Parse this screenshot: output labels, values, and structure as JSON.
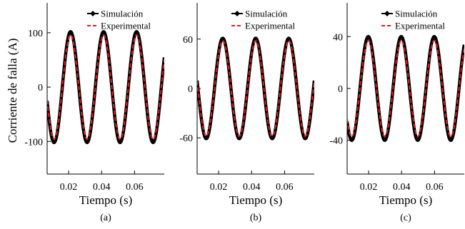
{
  "figure": {
    "ylabel": "Corriente de falla (A)",
    "colors": {
      "simulation": "#000000",
      "experimental": "#e31a1c"
    }
  },
  "chart_data": [
    {
      "type": "line",
      "subfig": "(a)",
      "xlabel": "Tiempo (s)",
      "ylabel": "Corriente de falla (A)",
      "xlim": [
        0.007,
        0.078
      ],
      "ylim": [
        -160,
        155
      ],
      "xticks": [
        0.02,
        0.04,
        0.06
      ],
      "xtick_labels": [
        "0.02",
        "0.04",
        "0.06"
      ],
      "yticks": [
        100,
        0,
        -100
      ],
      "ytick_labels": [
        "100",
        "0",
        "-100"
      ],
      "legend": "top-right",
      "frequency_hz": 50,
      "series": [
        {
          "name": "Simulación",
          "amplitude": 102,
          "peak_time": 0.0212,
          "style": "solid-marker"
        },
        {
          "name": "Experimental",
          "amplitude": 96,
          "peak_time": 0.0212,
          "style": "dashed"
        }
      ]
    },
    {
      "type": "line",
      "subfig": "(b)",
      "xlabel": "Tiempo (s)",
      "ylabel": "",
      "xlim": [
        0.007,
        0.078
      ],
      "ylim": [
        -104,
        104
      ],
      "xticks": [
        0.02,
        0.04,
        0.06
      ],
      "xtick_labels": [
        "0.02",
        "0.04",
        "0.06"
      ],
      "yticks": [
        60,
        0,
        -60
      ],
      "ytick_labels": [
        "60",
        "0",
        "-60"
      ],
      "legend": "top-right",
      "frequency_hz": 50,
      "series": [
        {
          "name": "Simulación",
          "amplitude": 61,
          "peak_time": 0.0225,
          "style": "solid-marker"
        },
        {
          "name": "Experimental",
          "amplitude": 58,
          "peak_time": 0.0225,
          "style": "dashed"
        }
      ]
    },
    {
      "type": "line",
      "subfig": "(c)",
      "xlabel": "Tiempo (s)",
      "ylabel": "",
      "xlim": [
        0.007,
        0.078
      ],
      "ylim": [
        -66,
        66
      ],
      "xticks": [
        0.02,
        0.04,
        0.06
      ],
      "xtick_labels": [
        "0.02",
        "0.04",
        "0.06"
      ],
      "yticks": [
        40,
        0,
        -40
      ],
      "ytick_labels": [
        "40",
        "0",
        "-40"
      ],
      "legend": "top-right",
      "frequency_hz": 50,
      "series": [
        {
          "name": "Simulación",
          "amplitude": 40,
          "peak_time": 0.0198,
          "style": "solid-marker"
        },
        {
          "name": "Experimental",
          "amplitude": 37,
          "peak_time": 0.0198,
          "style": "dashed"
        }
      ]
    }
  ]
}
